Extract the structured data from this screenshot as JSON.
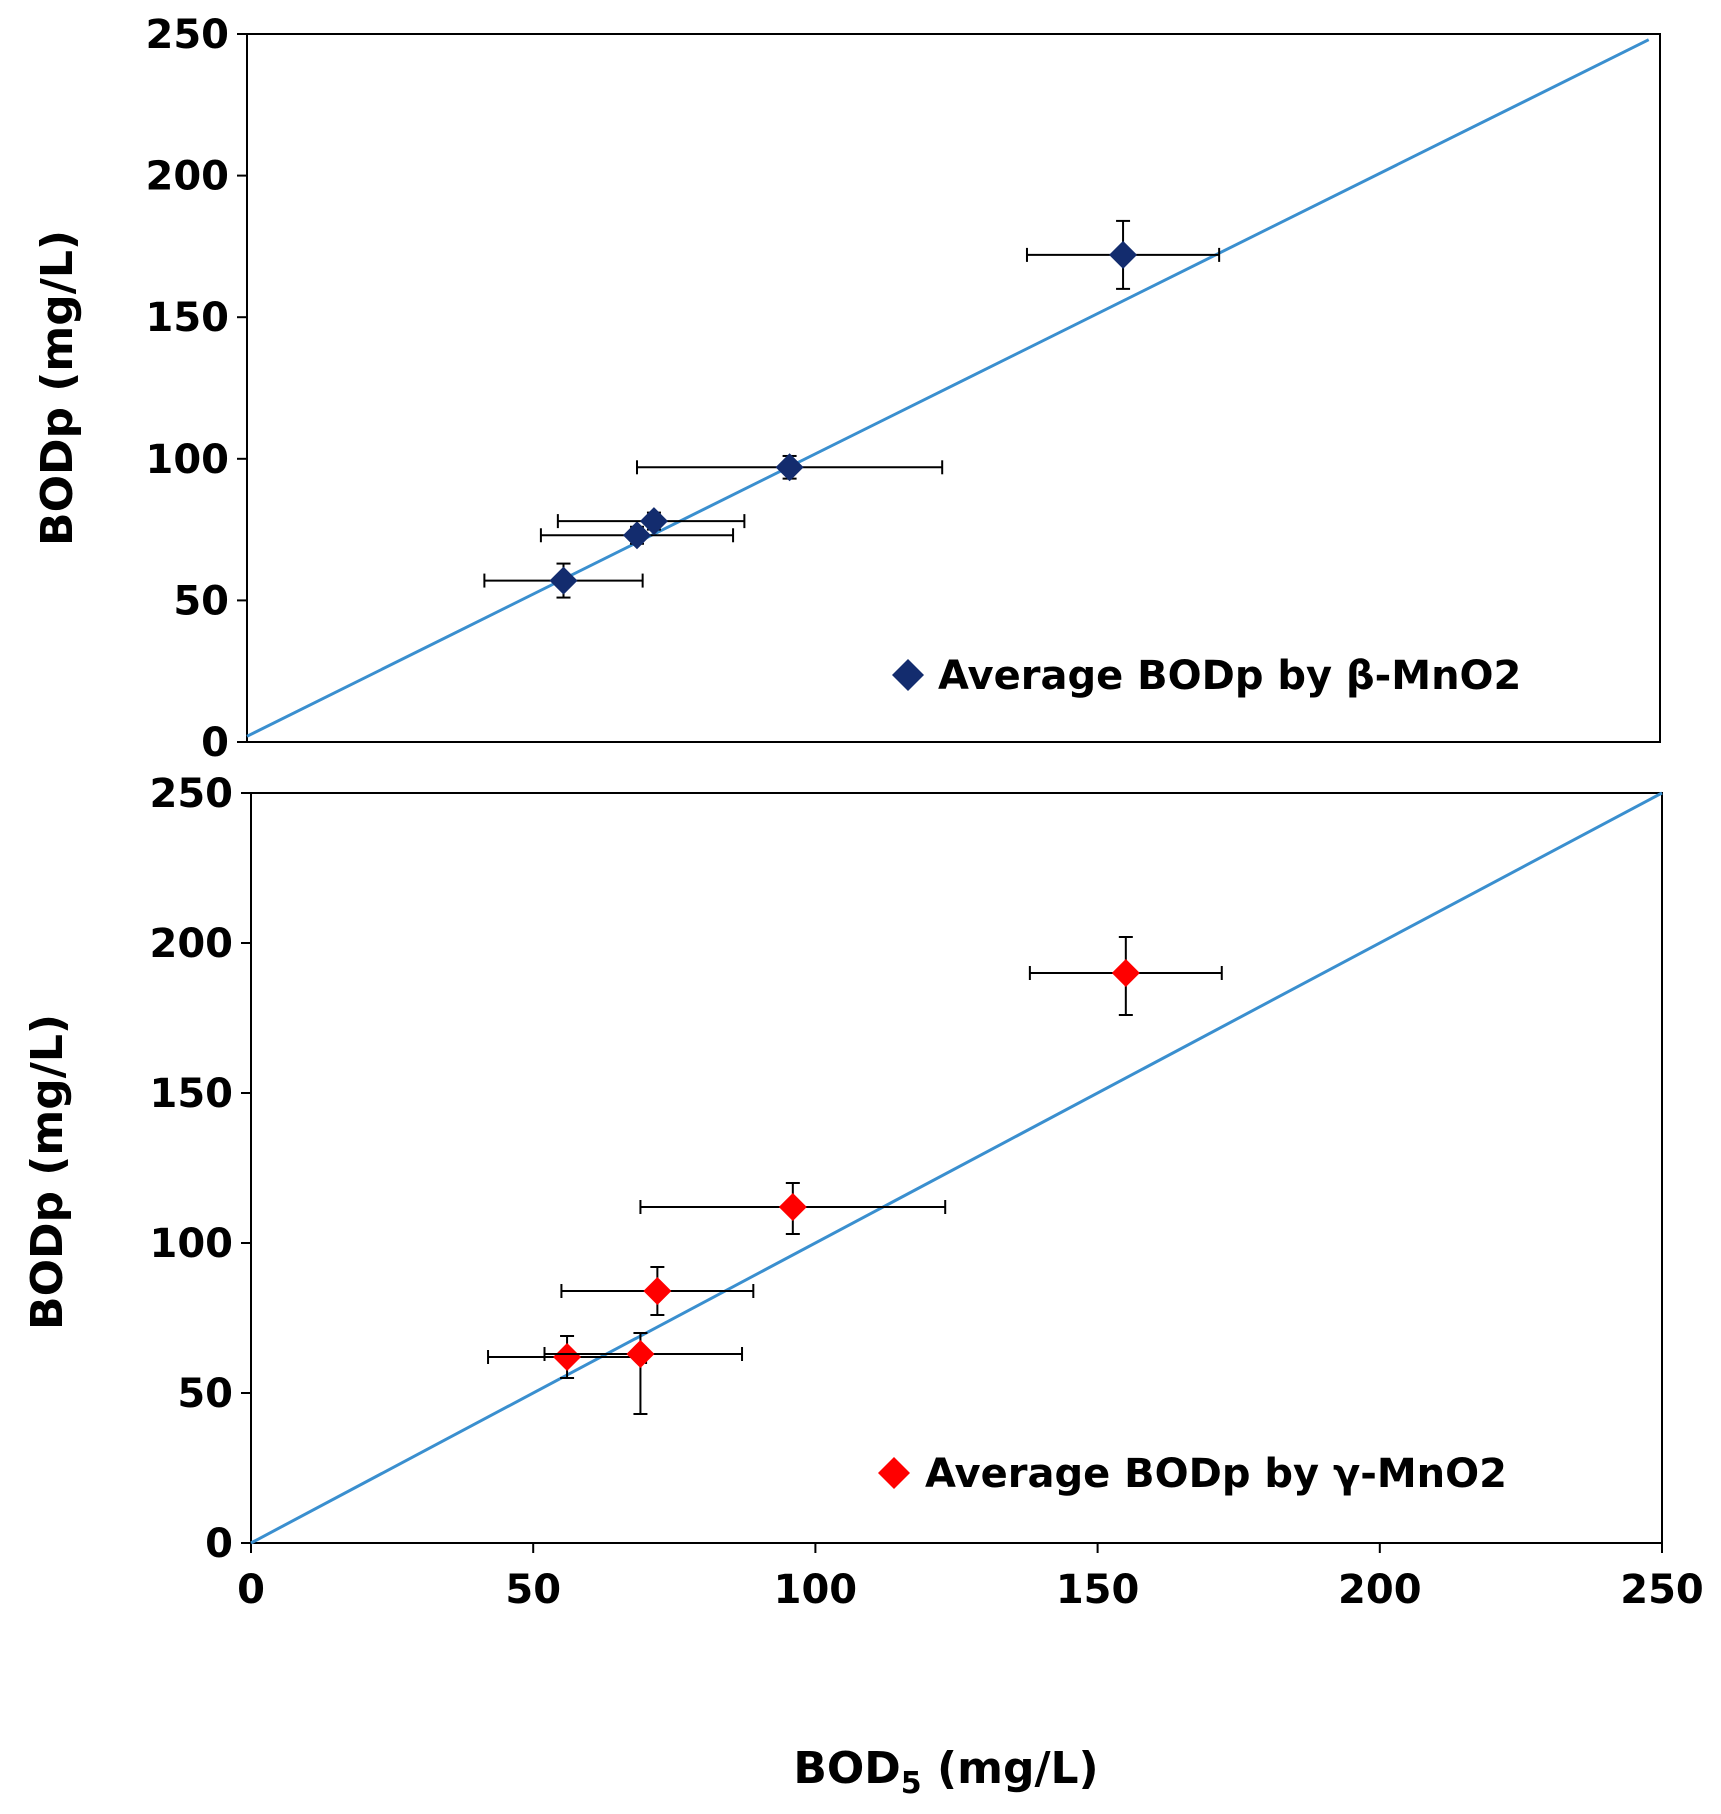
{
  "chart_data": [
    {
      "type": "scatter",
      "panel": "top",
      "ylabel": "BODp (mg/L)",
      "xlim": [
        0,
        250
      ],
      "ylim": [
        0,
        250
      ],
      "yticks": [
        0,
        50,
        100,
        150,
        200,
        250
      ],
      "grid": false,
      "legend": "bottom-right",
      "reference_line": {
        "x": [
          0,
          248
        ],
        "y": [
          2,
          248
        ],
        "color": "#3a8fcf"
      },
      "series": [
        {
          "name": "Average BODp by β-MnO2",
          "color": "#132c6e",
          "marker": "diamond",
          "points": [
            {
              "x": 56,
              "y": 57,
              "xerr_lo": 42,
              "xerr_hi": 70,
              "yerr_lo": 51,
              "yerr_hi": 63
            },
            {
              "x": 69,
              "y": 73,
              "xerr_lo": 52,
              "xerr_hi": 86,
              "yerr_lo": 70,
              "yerr_hi": 76
            },
            {
              "x": 72,
              "y": 78,
              "xerr_lo": 55,
              "xerr_hi": 88,
              "yerr_lo": 75,
              "yerr_hi": 81
            },
            {
              "x": 96,
              "y": 97,
              "xerr_lo": 69,
              "xerr_hi": 123,
              "yerr_lo": 93,
              "yerr_hi": 101
            },
            {
              "x": 155,
              "y": 172,
              "xerr_lo": 138,
              "xerr_hi": 172,
              "yerr_lo": 160,
              "yerr_hi": 184
            }
          ]
        }
      ]
    },
    {
      "type": "scatter",
      "panel": "bottom",
      "xlabel_main": "BOD",
      "xlabel_sub": "5",
      "xlabel_unit": " (mg/L)",
      "ylabel": "BODp (mg/L)",
      "xlim": [
        0,
        250
      ],
      "ylim": [
        0,
        250
      ],
      "xticks": [
        0,
        50,
        100,
        150,
        200,
        250
      ],
      "yticks": [
        0,
        50,
        100,
        150,
        200,
        250
      ],
      "grid": false,
      "legend": "bottom-right",
      "reference_line": {
        "x": [
          0,
          250
        ],
        "y": [
          0,
          250
        ],
        "color": "#3a8fcf"
      },
      "series": [
        {
          "name": "Average BODp by γ-MnO2",
          "color": "#ff0000",
          "marker": "diamond",
          "points": [
            {
              "x": 56,
              "y": 62,
              "xerr_lo": 42,
              "xerr_hi": 70,
              "yerr_lo": 55,
              "yerr_hi": 69
            },
            {
              "x": 69,
              "y": 63,
              "xerr_lo": 52,
              "xerr_hi": 87,
              "yerr_lo": 43,
              "yerr_hi": 70
            },
            {
              "x": 72,
              "y": 84,
              "xerr_lo": 55,
              "xerr_hi": 89,
              "yerr_lo": 76,
              "yerr_hi": 92
            },
            {
              "x": 96,
              "y": 112,
              "xerr_lo": 69,
              "xerr_hi": 123,
              "yerr_lo": 103,
              "yerr_hi": 120
            },
            {
              "x": 155,
              "y": 190,
              "xerr_lo": 138,
              "xerr_hi": 172,
              "yerr_lo": 176,
              "yerr_hi": 202
            }
          ]
        }
      ]
    }
  ]
}
